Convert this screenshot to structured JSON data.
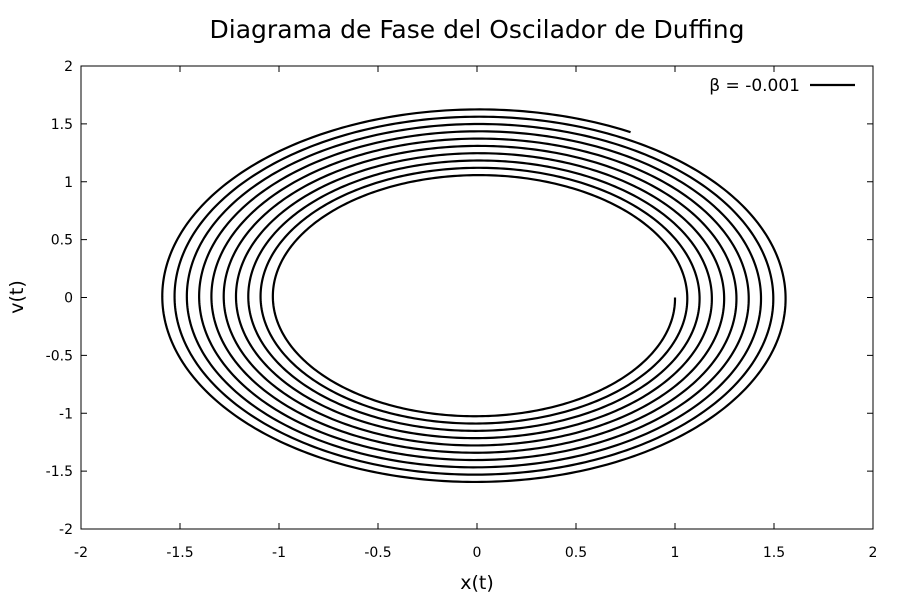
{
  "chart_data": {
    "type": "line",
    "title": "Diagrama de Fase del Oscilador de Duffing",
    "xlabel": "x(t)",
    "ylabel": "v(t)",
    "xlim": [
      -2,
      2
    ],
    "ylim": [
      -2,
      2
    ],
    "xticks": [
      "-2",
      "-1.5",
      "-1",
      "-0.5",
      "0",
      "0.5",
      "1",
      "1.5",
      "2"
    ],
    "yticks": [
      "2",
      "1.5",
      "1",
      "0.5",
      "0",
      "-0.5",
      "-1",
      "-1.5",
      "-2"
    ],
    "grid": false,
    "legend_position": "top-right",
    "series": [
      {
        "name": "β = -0.001",
        "color": "#000000",
        "spiral": {
          "start": [
            1.0,
            0.0
          ],
          "end": [
            0.97,
            1.31
          ],
          "x_amplitude_start": 1.0,
          "x_amplitude_end": 1.61,
          "v_amplitude_start": 1.01,
          "v_amplitude_end": 1.63,
          "turns": 9.83
        }
      }
    ]
  }
}
